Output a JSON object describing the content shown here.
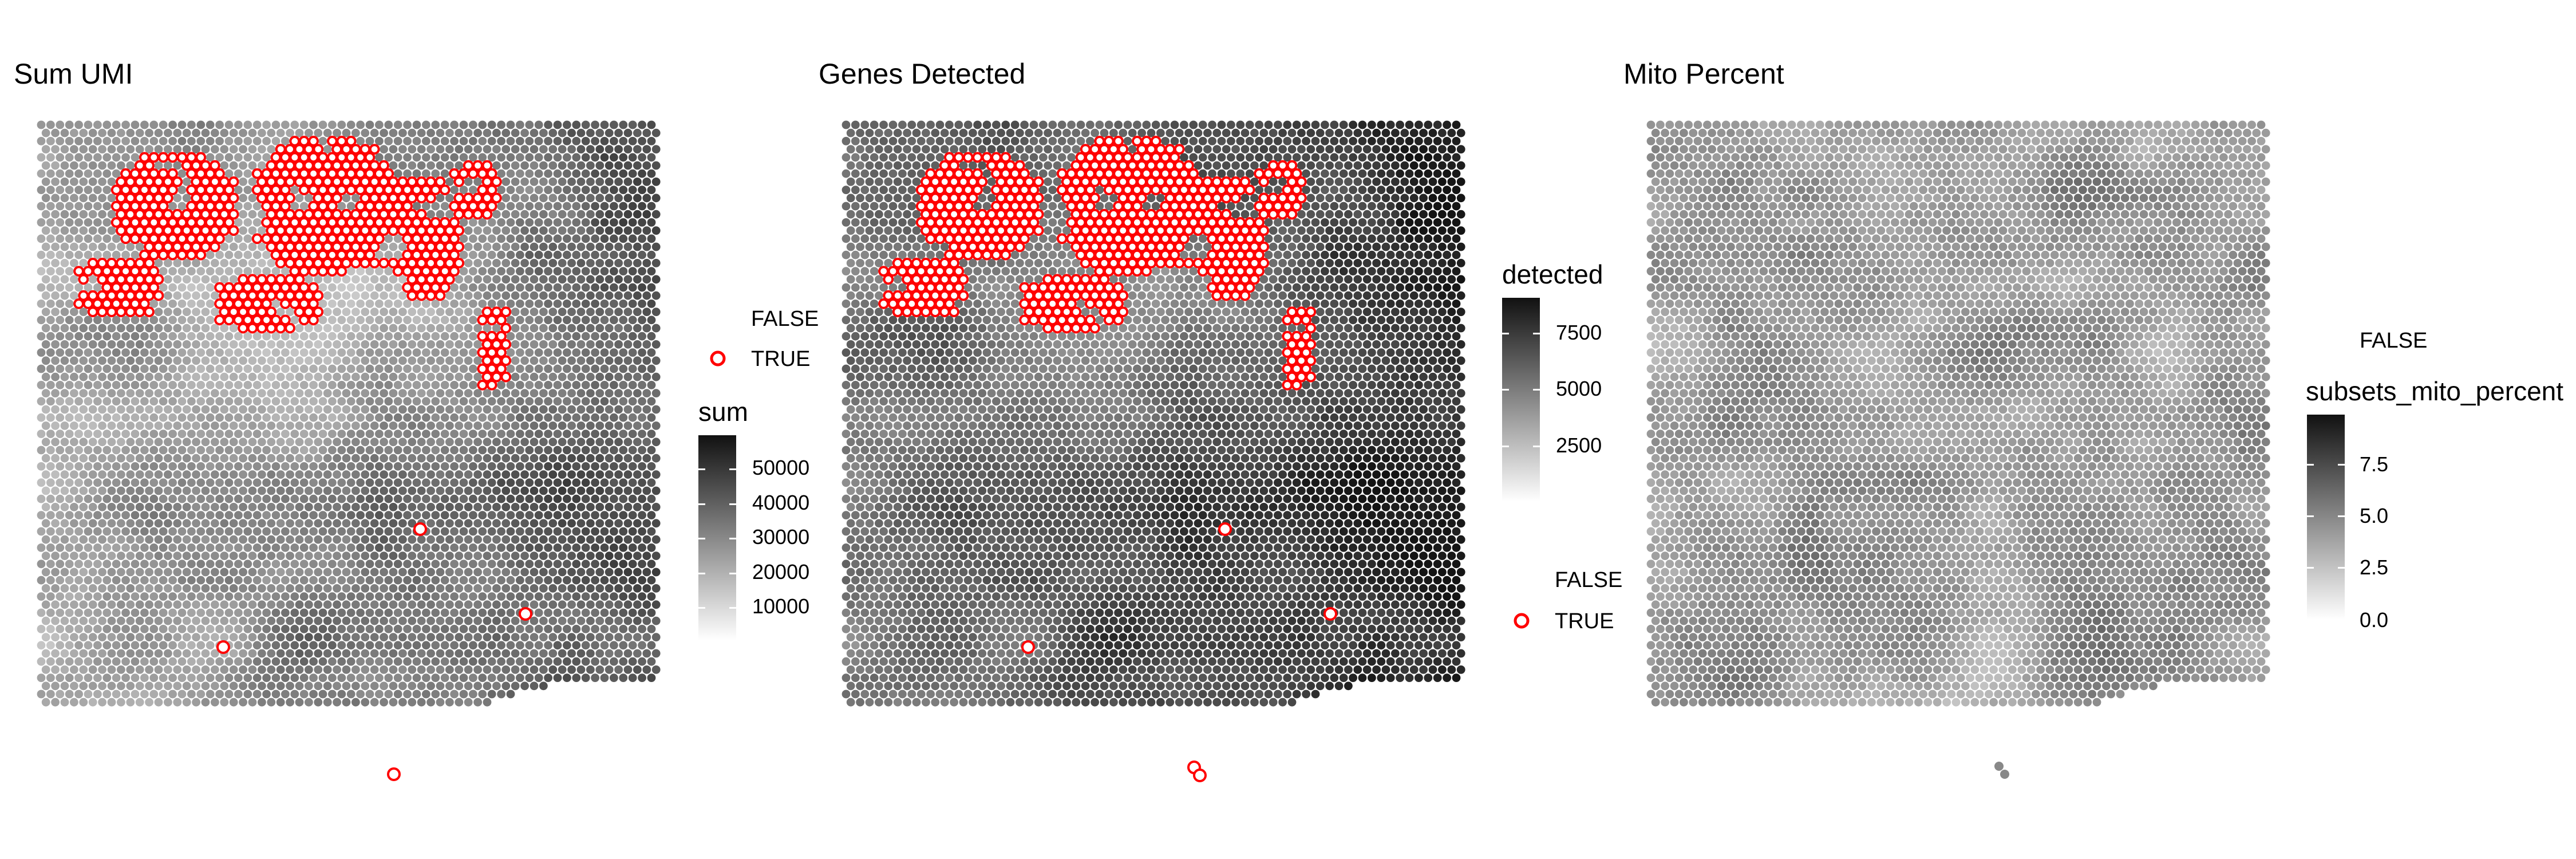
{
  "chart_data": [
    {
      "type": "scatter",
      "title": "Sum UMI",
      "fill_variable": "sum",
      "colorbar": {
        "range": [
          0,
          60000
        ],
        "ticks": [
          10000,
          20000,
          30000,
          40000,
          50000
        ],
        "tick_labels": [
          "10000",
          "20000",
          "30000",
          "40000",
          "50000"
        ],
        "low_color": "#ffffff",
        "high_color": "#111111"
      },
      "outline_legend": {
        "labels": [
          "FALSE",
          "TRUE"
        ],
        "colors": [
          "none",
          "#ff0000"
        ]
      },
      "highlighted_outliers_visible": true
    },
    {
      "type": "scatter",
      "title": "Genes Detected",
      "fill_variable": "detected",
      "colorbar": {
        "range": [
          0,
          9500
        ],
        "ticks": [
          2500,
          5000,
          7500
        ],
        "tick_labels": [
          "2500",
          "5000",
          "7500"
        ],
        "low_color": "#ffffff",
        "high_color": "#111111"
      },
      "outline_legend": {
        "labels": [
          "FALSE",
          "TRUE"
        ],
        "colors": [
          "none",
          "#ff0000"
        ]
      },
      "highlighted_outliers_visible": true
    },
    {
      "type": "scatter",
      "title": "Mito Percent",
      "fill_variable": "subsets_mito_percent",
      "colorbar": {
        "range": [
          0,
          10
        ],
        "ticks": [
          0,
          2.5,
          5,
          7.5
        ],
        "tick_labels": [
          "0.0",
          "2.5",
          "5.0",
          "7.5"
        ],
        "low_color": "#ffffff",
        "high_color": "#111111"
      },
      "outline_legend": {
        "labels": [
          "FALSE"
        ],
        "colors": [
          "none"
        ]
      },
      "highlighted_outliers_visible": false
    }
  ],
  "colors": {
    "outlier_outline": "#ff0000",
    "background": "#ffffff"
  }
}
